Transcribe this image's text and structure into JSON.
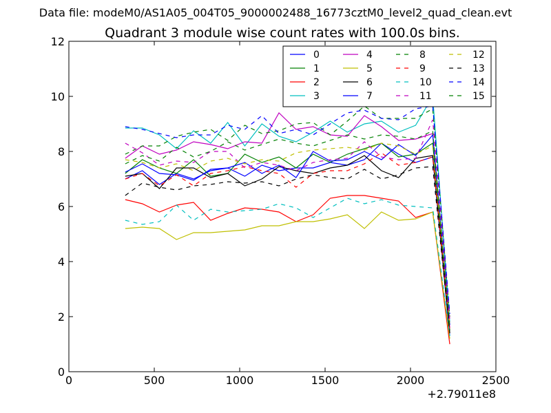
{
  "chart_data": {
    "type": "line",
    "suptitle": "Data file: modeM0/AS1A05_004T05_9000002488_16773cztM0_level2_quad_clean.evt",
    "title": "Quadrant 3 module wise count rates with 100.0s bins.",
    "xlabel": "",
    "ylabel": "",
    "x_offset_label": "+2.79011e8",
    "xlim": [
      0,
      2500
    ],
    "ylim": [
      0,
      12
    ],
    "x_ticks": [
      0,
      500,
      1000,
      1500,
      2000,
      2500
    ],
    "y_ticks": [
      0,
      2,
      4,
      6,
      8,
      10,
      12
    ],
    "grid": false,
    "legend": {
      "placement": "top-right",
      "columns": 4
    },
    "x": [
      330,
      430,
      530,
      630,
      730,
      830,
      930,
      1030,
      1130,
      1230,
      1330,
      1430,
      1530,
      1630,
      1730,
      1830,
      1930,
      2030,
      2130,
      2230
    ],
    "series": [
      {
        "name": "0",
        "color": "#0000ff",
        "dash": false,
        "values": [
          7.0,
          7.3,
          6.8,
          7.2,
          7.0,
          7.3,
          7.4,
          7.1,
          7.5,
          7.3,
          7.4,
          7.4,
          7.6,
          7.5,
          7.7,
          8.3,
          7.9,
          7.6,
          7.8,
          1.3
        ]
      },
      {
        "name": "1",
        "color": "#008000",
        "dash": false,
        "values": [
          7.2,
          7.7,
          7.4,
          7.2,
          7.7,
          7.1,
          7.2,
          7.9,
          7.6,
          7.8,
          7.4,
          7.9,
          7.6,
          7.9,
          8.1,
          8.3,
          7.8,
          7.9,
          8.3,
          1.5
        ]
      },
      {
        "name": "2",
        "color": "#ff0000",
        "dash": false,
        "values": [
          6.25,
          6.1,
          5.8,
          6.05,
          6.15,
          5.5,
          5.75,
          5.95,
          5.9,
          5.8,
          5.45,
          5.7,
          6.3,
          6.4,
          6.4,
          6.3,
          6.2,
          5.6,
          5.8,
          1.0
        ]
      },
      {
        "name": "3",
        "color": "#00bfbf",
        "dash": false,
        "values": [
          8.85,
          8.85,
          8.6,
          8.1,
          8.75,
          8.3,
          9.05,
          8.2,
          9.0,
          8.55,
          8.35,
          8.7,
          9.1,
          8.7,
          9.0,
          9.1,
          8.7,
          8.95,
          10.0,
          1.8
        ]
      },
      {
        "name": "4",
        "color": "#bf00bf",
        "dash": false,
        "values": [
          7.75,
          8.2,
          7.9,
          8.05,
          8.35,
          8.25,
          8.1,
          8.35,
          8.3,
          9.4,
          8.8,
          8.9,
          8.6,
          8.55,
          9.3,
          8.9,
          8.4,
          8.45,
          8.65,
          1.6
        ]
      },
      {
        "name": "5",
        "color": "#bfbf00",
        "dash": false,
        "values": [
          5.2,
          5.25,
          5.2,
          4.8,
          5.05,
          5.05,
          5.1,
          5.15,
          5.3,
          5.3,
          5.45,
          5.45,
          5.55,
          5.7,
          5.2,
          5.8,
          5.5,
          5.55,
          5.8,
          1.2
        ]
      },
      {
        "name": "6",
        "color": "#000000",
        "dash": false,
        "values": [
          7.1,
          7.2,
          6.65,
          7.4,
          7.4,
          7.05,
          7.2,
          6.75,
          7.0,
          7.45,
          7.3,
          7.2,
          7.4,
          7.5,
          7.85,
          7.3,
          7.05,
          7.75,
          7.85,
          1.4
        ]
      },
      {
        "name": "7",
        "color": "#0000ff",
        "dash": false,
        "values": [
          7.25,
          7.55,
          7.2,
          7.15,
          6.95,
          7.35,
          7.4,
          7.6,
          7.2,
          7.5,
          7.05,
          8.0,
          7.65,
          7.7,
          8.0,
          7.7,
          8.25,
          7.85,
          8.6,
          1.7
        ]
      },
      {
        "name": "8",
        "color": "#008000",
        "dash": true,
        "values": [
          7.9,
          8.2,
          8.2,
          8.55,
          8.7,
          8.8,
          8.4,
          8.95,
          8.65,
          8.75,
          9.0,
          9.05,
          8.6,
          9.1,
          9.65,
          9.2,
          9.2,
          9.2,
          9.55,
          2.0
        ]
      },
      {
        "name": "9",
        "color": "#ff0000",
        "dash": true,
        "values": [
          7.0,
          7.2,
          6.75,
          7.15,
          6.75,
          7.2,
          7.3,
          7.45,
          7.3,
          7.2,
          6.7,
          7.2,
          7.3,
          7.3,
          7.55,
          7.95,
          7.5,
          7.6,
          7.8,
          1.5
        ]
      },
      {
        "name": "10",
        "color": "#00bfbf",
        "dash": true,
        "values": [
          5.5,
          5.35,
          5.45,
          6.05,
          5.5,
          5.9,
          5.8,
          5.85,
          5.9,
          6.1,
          5.95,
          5.6,
          5.95,
          6.3,
          6.1,
          6.25,
          6.05,
          6.0,
          5.95,
          1.3
        ]
      },
      {
        "name": "11",
        "color": "#bf00bf",
        "dash": true,
        "values": [
          8.3,
          7.95,
          7.5,
          7.65,
          7.6,
          8.0,
          8.0,
          7.4,
          7.6,
          7.5,
          7.3,
          7.6,
          7.7,
          7.75,
          8.35,
          7.8,
          7.7,
          7.75,
          9.15,
          1.9
        ]
      },
      {
        "name": "12",
        "color": "#bfbf00",
        "dash": true,
        "values": [
          7.7,
          7.6,
          7.4,
          7.55,
          7.3,
          7.65,
          7.75,
          7.55,
          7.7,
          7.65,
          7.95,
          8.05,
          8.1,
          8.15,
          8.05,
          8.3,
          8.2,
          7.9,
          8.2,
          1.7
        ]
      },
      {
        "name": "13",
        "color": "#000000",
        "dash": true,
        "values": [
          6.4,
          6.85,
          6.7,
          6.6,
          6.75,
          6.8,
          6.9,
          6.85,
          6.9,
          6.75,
          7.0,
          7.15,
          7.05,
          7.0,
          7.35,
          7.0,
          7.15,
          7.4,
          7.45,
          1.4
        ]
      },
      {
        "name": "14",
        "color": "#0000ff",
        "dash": true,
        "values": [
          8.9,
          8.8,
          8.65,
          8.5,
          8.6,
          8.6,
          8.95,
          8.8,
          9.3,
          8.65,
          8.8,
          8.6,
          9.0,
          9.4,
          9.5,
          9.2,
          9.15,
          9.55,
          9.65,
          2.1
        ]
      },
      {
        "name": "15",
        "color": "#008000",
        "dash": true,
        "values": [
          7.55,
          7.85,
          7.65,
          8.15,
          7.8,
          8.0,
          8.35,
          8.05,
          8.25,
          8.45,
          8.3,
          8.2,
          8.4,
          8.6,
          8.45,
          8.6,
          8.55,
          8.45,
          8.75,
          1.6
        ]
      }
    ]
  }
}
